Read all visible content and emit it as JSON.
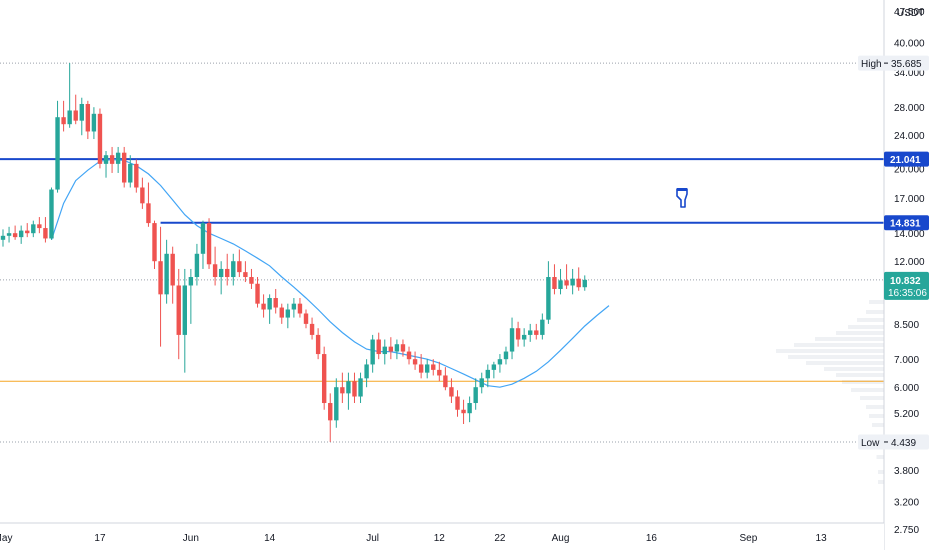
{
  "chart_data": {
    "type": "candlestick",
    "interval": "1D",
    "quote_currency": "USDT",
    "y_scale": "log",
    "ylim": [
      2.45,
      50.5
    ],
    "y_ticks": [
      "47.500",
      "40.000",
      "34.000",
      "28.000",
      "24.000",
      "20.000",
      "17.000",
      "14.000",
      "12.000",
      "8.500",
      "7.000",
      "6.000",
      "5.200",
      "3.800",
      "3.200",
      "2.750"
    ],
    "x_labels": [
      {
        "day": 0,
        "label": "May"
      },
      {
        "day": 16,
        "label": "17"
      },
      {
        "day": 31,
        "label": "Jun"
      },
      {
        "day": 44,
        "label": "14"
      },
      {
        "day": 61,
        "label": "Jul"
      },
      {
        "day": 72,
        "label": "12"
      },
      {
        "day": 82,
        "label": "22"
      },
      {
        "day": 92,
        "label": "Aug"
      },
      {
        "day": 107,
        "label": "16"
      },
      {
        "day": 123,
        "label": "Sep"
      },
      {
        "day": 135,
        "label": "13"
      }
    ],
    "levels": {
      "high": {
        "label": "High",
        "value": 35.685,
        "text": "35.685"
      },
      "low": {
        "label": "Low",
        "value": 4.439,
        "text": "4.439"
      },
      "resistance_1": {
        "value": 21.041,
        "text": "21.041"
      },
      "resistance_2": {
        "value": 14.831,
        "text": "14.831"
      },
      "support": {
        "value": 6.2
      },
      "last_price": {
        "value": 10.832,
        "text": "10.832",
        "countdown": "16:35:06"
      }
    },
    "candles": [
      [
        13.5,
        14.3,
        13.0,
        13.8
      ],
      [
        13.8,
        14.5,
        13.3,
        14.0
      ],
      [
        14.0,
        14.6,
        13.5,
        13.7
      ],
      [
        13.7,
        14.6,
        13.2,
        14.2
      ],
      [
        14.2,
        14.8,
        13.7,
        14.0
      ],
      [
        14.0,
        15.0,
        13.7,
        14.7
      ],
      [
        14.7,
        15.3,
        14.0,
        14.4
      ],
      [
        14.4,
        15.3,
        13.3,
        13.6
      ],
      [
        13.6,
        18.0,
        13.5,
        17.8
      ],
      [
        17.8,
        29.0,
        17.5,
        26.5
      ],
      [
        26.5,
        29.0,
        24.5,
        25.5
      ],
      [
        25.5,
        35.7,
        25.0,
        27.5
      ],
      [
        27.5,
        30.0,
        25.5,
        26.0
      ],
      [
        26.0,
        29.5,
        24.0,
        28.5
      ],
      [
        28.5,
        29.0,
        23.5,
        24.5
      ],
      [
        24.5,
        28.0,
        23.5,
        27.0
      ],
      [
        27.0,
        27.8,
        20.0,
        20.5
      ],
      [
        20.5,
        22.0,
        19.0,
        21.5
      ],
      [
        21.5,
        22.5,
        19.5,
        20.5
      ],
      [
        20.5,
        22.5,
        19.5,
        21.8
      ],
      [
        21.8,
        22.5,
        18.0,
        18.5
      ],
      [
        18.5,
        21.5,
        18.0,
        20.5
      ],
      [
        20.5,
        21.0,
        17.5,
        18.0
      ],
      [
        18.0,
        19.0,
        16.0,
        16.5
      ],
      [
        16.5,
        18.5,
        14.5,
        14.8
      ],
      [
        14.8,
        15.0,
        11.5,
        12.0
      ],
      [
        12.0,
        14.5,
        7.5,
        10.0
      ],
      [
        10.0,
        13.5,
        9.5,
        12.5
      ],
      [
        12.5,
        13.0,
        9.5,
        10.5
      ],
      [
        10.5,
        11.5,
        7.0,
        8.0
      ],
      [
        8.0,
        11.5,
        6.5,
        10.5
      ],
      [
        10.5,
        11.5,
        8.5,
        11.0
      ],
      [
        11.0,
        13.2,
        10.5,
        12.5
      ],
      [
        12.5,
        15.0,
        11.5,
        14.8
      ],
      [
        14.8,
        15.2,
        11.5,
        11.8
      ],
      [
        11.8,
        13.0,
        10.5,
        11.0
      ],
      [
        11.0,
        12.0,
        10.0,
        11.5
      ],
      [
        11.5,
        12.5,
        10.5,
        11.0
      ],
      [
        11.0,
        12.5,
        10.5,
        12.0
      ],
      [
        12.0,
        12.8,
        11.0,
        11.3
      ],
      [
        11.3,
        12.0,
        10.7,
        11.0
      ],
      [
        11.0,
        11.5,
        10.3,
        10.6
      ],
      [
        10.6,
        11.0,
        9.3,
        9.5
      ],
      [
        9.5,
        10.0,
        8.8,
        9.2
      ],
      [
        9.2,
        10.0,
        8.5,
        9.8
      ],
      [
        9.8,
        10.3,
        9.0,
        9.3
      ],
      [
        9.3,
        9.5,
        8.5,
        8.8
      ],
      [
        8.8,
        9.5,
        8.3,
        9.2
      ],
      [
        9.2,
        9.8,
        8.8,
        9.5
      ],
      [
        9.5,
        9.8,
        8.8,
        9.0
      ],
      [
        9.0,
        9.2,
        8.3,
        8.5
      ],
      [
        8.5,
        8.8,
        7.8,
        8.0
      ],
      [
        8.0,
        8.3,
        7.0,
        7.2
      ],
      [
        7.2,
        7.5,
        5.3,
        5.5
      ],
      [
        5.5,
        5.8,
        4.44,
        5.0
      ],
      [
        5.0,
        6.3,
        4.8,
        6.0
      ],
      [
        6.0,
        6.5,
        5.5,
        5.8
      ],
      [
        5.8,
        6.5,
        5.3,
        6.2
      ],
      [
        6.2,
        6.5,
        5.5,
        5.7
      ],
      [
        5.7,
        6.5,
        5.5,
        6.3
      ],
      [
        6.3,
        7.0,
        6.0,
        6.8
      ],
      [
        6.8,
        8.0,
        6.5,
        7.8
      ],
      [
        7.8,
        8.1,
        7.0,
        7.2
      ],
      [
        7.2,
        7.8,
        6.8,
        7.5
      ],
      [
        7.5,
        7.9,
        7.0,
        7.3
      ],
      [
        7.3,
        7.8,
        7.0,
        7.6
      ],
      [
        7.6,
        7.8,
        7.1,
        7.3
      ],
      [
        7.3,
        7.5,
        6.8,
        7.0
      ],
      [
        7.0,
        7.3,
        6.6,
        6.8
      ],
      [
        6.8,
        7.2,
        6.3,
        6.5
      ],
      [
        6.5,
        7.0,
        6.3,
        6.8
      ],
      [
        6.8,
        7.0,
        6.4,
        6.6
      ],
      [
        6.6,
        6.9,
        6.2,
        6.4
      ],
      [
        6.4,
        6.7,
        5.9,
        6.0
      ],
      [
        6.0,
        6.3,
        5.5,
        5.7
      ],
      [
        5.7,
        5.9,
        5.1,
        5.3
      ],
      [
        5.3,
        5.6,
        4.9,
        5.2
      ],
      [
        5.2,
        5.7,
        4.95,
        5.5
      ],
      [
        5.5,
        6.3,
        5.3,
        6.0
      ],
      [
        6.0,
        6.5,
        5.8,
        6.3
      ],
      [
        6.3,
        6.8,
        6.0,
        6.6
      ],
      [
        6.6,
        6.9,
        6.3,
        6.8
      ],
      [
        6.8,
        7.2,
        6.5,
        7.0
      ],
      [
        7.0,
        7.5,
        6.8,
        7.3
      ],
      [
        7.3,
        8.8,
        7.0,
        8.3
      ],
      [
        8.3,
        8.6,
        7.5,
        7.8
      ],
      [
        7.8,
        8.3,
        7.5,
        8.0
      ],
      [
        8.0,
        8.5,
        7.7,
        8.2
      ],
      [
        8.2,
        8.5,
        7.8,
        8.0
      ],
      [
        8.0,
        9.0,
        7.8,
        8.7
      ],
      [
        8.7,
        12.0,
        8.5,
        11.0
      ],
      [
        11.0,
        11.8,
        10.0,
        10.3
      ],
      [
        10.3,
        11.5,
        10.0,
        10.8
      ],
      [
        10.8,
        11.8,
        10.3,
        10.5
      ],
      [
        10.5,
        11.5,
        10.0,
        10.9
      ],
      [
        10.9,
        11.6,
        10.2,
        10.4
      ],
      [
        10.4,
        11.1,
        10.2,
        10.83
      ]
    ],
    "moving_average": [
      [
        8,
        13.5
      ],
      [
        10,
        16.5
      ],
      [
        12,
        18.7
      ],
      [
        14,
        19.8
      ],
      [
        16,
        20.8
      ],
      [
        18,
        21.0
      ],
      [
        20,
        20.9
      ],
      [
        22,
        20.3
      ],
      [
        24,
        19.4
      ],
      [
        26,
        18.2
      ],
      [
        28,
        16.8
      ],
      [
        30,
        15.5
      ],
      [
        32,
        14.6
      ],
      [
        34,
        14.0
      ],
      [
        36,
        13.6
      ],
      [
        38,
        13.2
      ],
      [
        40,
        12.7
      ],
      [
        42,
        12.2
      ],
      [
        44,
        11.7
      ],
      [
        46,
        11.0
      ],
      [
        48,
        10.4
      ],
      [
        50,
        9.8
      ],
      [
        52,
        9.2
      ],
      [
        54,
        8.6
      ],
      [
        56,
        8.1
      ],
      [
        58,
        7.7
      ],
      [
        60,
        7.4
      ],
      [
        62,
        7.3
      ],
      [
        64,
        7.3
      ],
      [
        66,
        7.2
      ],
      [
        68,
        7.1
      ],
      [
        70,
        7.0
      ],
      [
        72,
        6.85
      ],
      [
        74,
        6.65
      ],
      [
        76,
        6.45
      ],
      [
        78,
        6.25
      ],
      [
        80,
        6.05
      ],
      [
        82,
        6.0
      ],
      [
        84,
        6.1
      ],
      [
        86,
        6.3
      ],
      [
        88,
        6.55
      ],
      [
        90,
        6.9
      ],
      [
        92,
        7.35
      ],
      [
        94,
        7.85
      ],
      [
        96,
        8.4
      ],
      [
        98,
        8.9
      ],
      [
        100,
        9.4
      ]
    ]
  }
}
